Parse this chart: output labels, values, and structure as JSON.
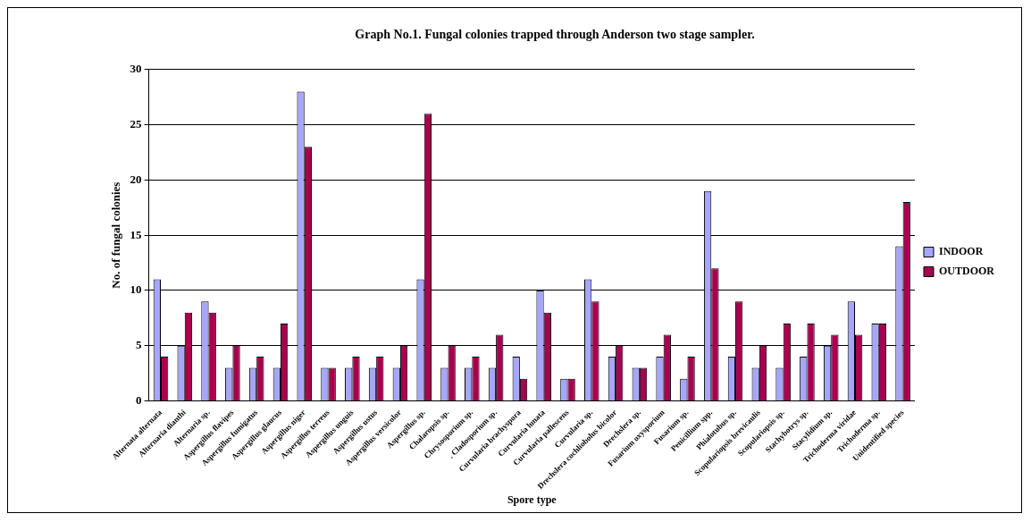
{
  "chart_data": {
    "type": "bar",
    "title": "Graph No.1. Fungal colonies trapped through Anderson two stage sampler.",
    "xlabel": "Spore type",
    "ylabel": "No. of fungal colonies",
    "categories": [
      "Alternata alternata",
      "Alternaria dianthi",
      "Alternaria sp.",
      "Aspergillus flavipes",
      "Aspergillus fumigatus",
      "Aspergillus glaucus",
      "Aspergillus niger",
      "Aspergillus terreus",
      "Aspergillus unguis",
      "Aspergillus ustus",
      "Aspergillus versicolor",
      "Aspergillus sp.",
      "Chalaropsis sp.",
      "Chrysosporium sp.",
      ". Cladosporium sp.",
      "Curvularia brachyspora",
      "Curvularia lunata",
      "Curvularia pallescens",
      "Curvularia sp.",
      "Drechslera cochliobolus bicolor",
      "Drechslera sp.",
      "Fusarium oxysporium",
      "Fusarium sp.",
      "Penicillium spp.",
      "Phialotubus sp.",
      "Scopulariopsis brevicaulis",
      "Scopulariopsis sp.",
      "Stachybotrys sp.",
      "Stacylidium sp.",
      "Trichoderma viridae",
      "Trichoderma sp.",
      "Unidentified species"
    ],
    "series": [
      {
        "name": "INDOOR",
        "color": "#a6a6ff",
        "values": [
          11,
          5,
          9,
          3,
          3,
          3,
          28,
          3,
          3,
          3,
          3,
          11,
          3,
          3,
          3,
          4,
          10,
          2,
          11,
          4,
          3,
          4,
          2,
          19,
          4,
          3,
          3,
          4,
          5,
          9,
          7,
          14
        ]
      },
      {
        "name": "OUTDOOR",
        "color": "#a8004f",
        "values": [
          4,
          8,
          8,
          5,
          4,
          7,
          23,
          3,
          4,
          4,
          5,
          26,
          5,
          4,
          6,
          2,
          8,
          2,
          9,
          5,
          3,
          6,
          4,
          12,
          9,
          5,
          7,
          7,
          6,
          6,
          7,
          18
        ]
      }
    ],
    "ylim": [
      0,
      30
    ],
    "yticks": [
      0,
      5,
      10,
      15,
      20,
      25,
      30
    ],
    "grid": "y",
    "legend": "right"
  }
}
